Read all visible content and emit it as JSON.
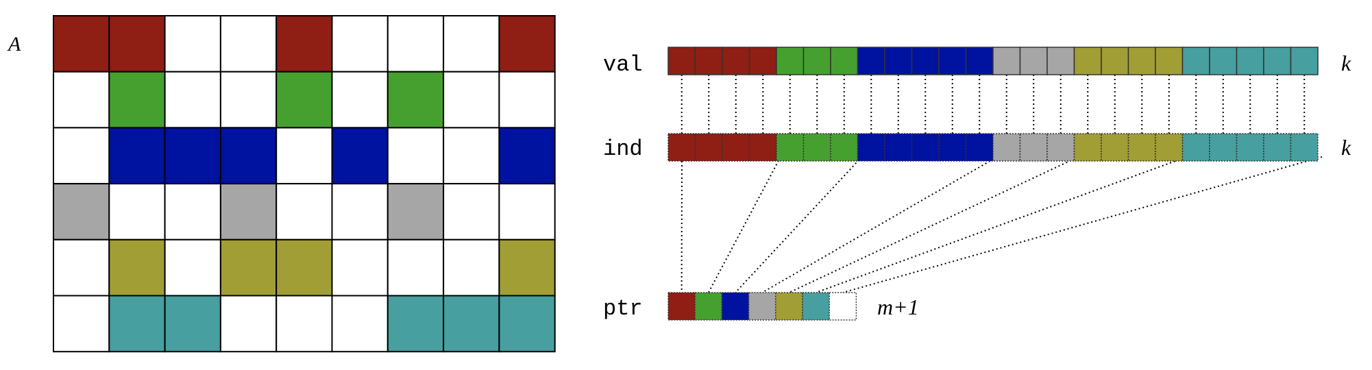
{
  "matrix": {
    "label": "A",
    "rows": [
      [
        "c1",
        "c1",
        null,
        null,
        "c1",
        null,
        null,
        null,
        "c1"
      ],
      [
        null,
        "c2",
        null,
        null,
        "c2",
        null,
        "c2",
        null,
        null
      ],
      [
        null,
        "c3",
        "c3",
        "c3",
        null,
        "c3",
        null,
        null,
        "c3"
      ],
      [
        "c4",
        null,
        null,
        "c4",
        null,
        null,
        "c4",
        null,
        null
      ],
      [
        null,
        "c5",
        null,
        "c5",
        "c5",
        null,
        null,
        null,
        "c5"
      ],
      [
        null,
        "c6",
        "c6",
        null,
        null,
        null,
        "c6",
        "c6",
        "c6"
      ]
    ]
  },
  "colors": {
    "c1": "#8f1e14",
    "c2": "#46a02f",
    "c3": "#0012a0",
    "c4": "#a6a6a6",
    "c5": "#a19e35",
    "c6": "#479f9f",
    "grid": "#000000"
  },
  "arrays": {
    "val": {
      "label": "val",
      "size_label": "k",
      "counts": [
        4,
        3,
        5,
        3,
        4,
        5
      ]
    },
    "ind": {
      "label": "ind",
      "size_label": "k",
      "counts": [
        4,
        3,
        5,
        3,
        4,
        5
      ]
    },
    "ptr": {
      "label": "ptr",
      "size_label": "m+1",
      "cells": [
        "c1",
        "c2",
        "c3",
        "c4",
        "c5",
        "c6",
        null
      ]
    }
  }
}
